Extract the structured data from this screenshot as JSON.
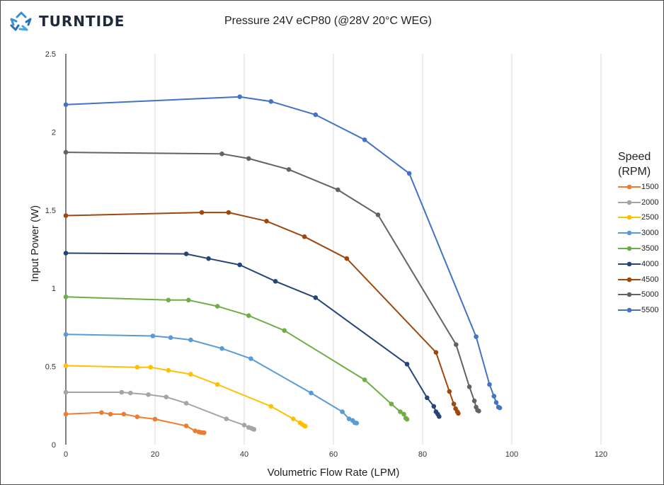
{
  "logo": {
    "text": "TURNTIDE"
  },
  "chart_data": {
    "type": "line",
    "title": "Pressure 24V eCP80  (@28V 20°C WEG)",
    "xlabel": "Volumetric Flow Rate (LPM)",
    "ylabel": "Input Power (W)",
    "xlim": [
      0,
      120
    ],
    "ylim": [
      0,
      2.5
    ],
    "xticks": [
      0,
      20,
      40,
      60,
      80,
      100,
      120
    ],
    "yticks": [
      0,
      0.5,
      1,
      1.5,
      2,
      2.5
    ],
    "grid": "vertical",
    "legend": {
      "title": "Speed (RPM)",
      "position": "right"
    },
    "series": [
      {
        "name": "1500",
        "color": "#ED7D31",
        "points": [
          [
            0,
            0.195
          ],
          [
            8,
            0.205
          ],
          [
            10,
            0.195
          ],
          [
            13,
            0.195
          ],
          [
            16,
            0.178
          ],
          [
            20,
            0.163
          ],
          [
            27,
            0.12
          ],
          [
            29,
            0.088
          ],
          [
            29.8,
            0.082
          ],
          [
            30.3,
            0.078
          ],
          [
            30.8,
            0.077
          ],
          [
            31,
            0.076
          ]
        ]
      },
      {
        "name": "2000",
        "color": "#A5A5A5",
        "points": [
          [
            0,
            0.335
          ],
          [
            12.5,
            0.335
          ],
          [
            14.5,
            0.33
          ],
          [
            18.5,
            0.32
          ],
          [
            22.5,
            0.305
          ],
          [
            27,
            0.265
          ],
          [
            36,
            0.165
          ],
          [
            40,
            0.125
          ],
          [
            41,
            0.11
          ],
          [
            41.6,
            0.105
          ],
          [
            42,
            0.1
          ],
          [
            42.2,
            0.098
          ]
        ]
      },
      {
        "name": "2500",
        "color": "#FFC000",
        "points": [
          [
            0,
            0.505
          ],
          [
            16,
            0.495
          ],
          [
            19,
            0.495
          ],
          [
            23,
            0.475
          ],
          [
            28,
            0.45
          ],
          [
            34,
            0.385
          ],
          [
            46,
            0.245
          ],
          [
            51,
            0.165
          ],
          [
            52.5,
            0.14
          ],
          [
            53,
            0.13
          ],
          [
            53.5,
            0.12
          ],
          [
            53.7,
            0.118
          ]
        ]
      },
      {
        "name": "3000",
        "color": "#5B9BD5",
        "points": [
          [
            0,
            0.705
          ],
          [
            19.5,
            0.695
          ],
          [
            23.5,
            0.685
          ],
          [
            28,
            0.67
          ],
          [
            35,
            0.615
          ],
          [
            41.5,
            0.55
          ],
          [
            55,
            0.33
          ],
          [
            62,
            0.21
          ],
          [
            63.5,
            0.165
          ],
          [
            64.3,
            0.155
          ],
          [
            64.8,
            0.14
          ],
          [
            65.2,
            0.138
          ]
        ]
      },
      {
        "name": "3500",
        "color": "#70AD47",
        "points": [
          [
            0,
            0.945
          ],
          [
            23,
            0.925
          ],
          [
            27.5,
            0.925
          ],
          [
            34,
            0.885
          ],
          [
            41,
            0.825
          ],
          [
            49,
            0.73
          ],
          [
            67,
            0.415
          ],
          [
            73,
            0.26
          ],
          [
            75,
            0.21
          ],
          [
            75.8,
            0.195
          ],
          [
            76.2,
            0.17
          ],
          [
            76.5,
            0.162
          ]
        ]
      },
      {
        "name": "4000",
        "color": "#264478",
        "points": [
          [
            0,
            1.225
          ],
          [
            27,
            1.22
          ],
          [
            32,
            1.19
          ],
          [
            39,
            1.15
          ],
          [
            47,
            1.045
          ],
          [
            56,
            0.94
          ],
          [
            76.5,
            0.515
          ],
          [
            81,
            0.3
          ],
          [
            82.5,
            0.245
          ],
          [
            83,
            0.21
          ],
          [
            83.4,
            0.195
          ],
          [
            83.7,
            0.18
          ]
        ]
      },
      {
        "name": "4500",
        "color": "#9E480E",
        "points": [
          [
            0,
            1.465
          ],
          [
            30.5,
            1.485
          ],
          [
            36.5,
            1.485
          ],
          [
            45,
            1.43
          ],
          [
            53.5,
            1.33
          ],
          [
            63,
            1.19
          ],
          [
            83,
            0.59
          ],
          [
            86,
            0.34
          ],
          [
            87,
            0.26
          ],
          [
            87.4,
            0.23
          ],
          [
            87.8,
            0.21
          ],
          [
            88,
            0.2
          ]
        ]
      },
      {
        "name": "5000",
        "color": "#636363",
        "points": [
          [
            0,
            1.87
          ],
          [
            35,
            1.86
          ],
          [
            41,
            1.83
          ],
          [
            50,
            1.76
          ],
          [
            61,
            1.63
          ],
          [
            70,
            1.47
          ],
          [
            87.5,
            0.64
          ],
          [
            90.5,
            0.37
          ],
          [
            91.6,
            0.28
          ],
          [
            92,
            0.24
          ],
          [
            92.3,
            0.22
          ],
          [
            92.6,
            0.215
          ]
        ]
      },
      {
        "name": "5500",
        "color": "#4472C4",
        "points": [
          [
            0,
            2.175
          ],
          [
            39,
            2.225
          ],
          [
            46,
            2.195
          ],
          [
            56,
            2.11
          ],
          [
            67,
            1.95
          ],
          [
            77,
            1.735
          ],
          [
            92,
            0.69
          ],
          [
            95,
            0.385
          ],
          [
            96,
            0.31
          ],
          [
            96.5,
            0.27
          ],
          [
            97,
            0.24
          ],
          [
            97.3,
            0.235
          ]
        ]
      }
    ]
  }
}
